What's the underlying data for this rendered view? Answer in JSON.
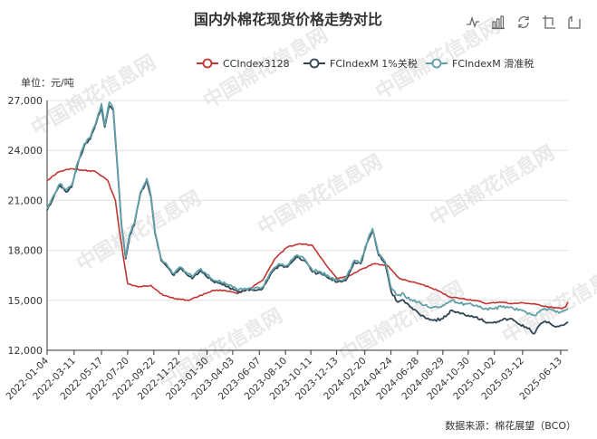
{
  "toolbar": {
    "icons": [
      "line-chart-icon",
      "bar-chart-icon",
      "restore-icon",
      "data-view-icon",
      "save-image-icon"
    ]
  },
  "watermark_text": "中国棉花信息网",
  "chart_data": {
    "type": "line",
    "title": "国内外棉花现货价格走势对比",
    "unit_label": "单位：元/吨",
    "source": "数据来源：棉花展望（BCO）",
    "ylim": [
      12000,
      27000
    ],
    "yticks": [
      12000,
      15000,
      18000,
      21000,
      24000,
      27000
    ],
    "ytick_labels": [
      "12,000",
      "15,000",
      "18,000",
      "21,000",
      "24,000",
      "27,000"
    ],
    "xlim": [
      "2022-01-04",
      "2025-07-01"
    ],
    "xtick_labels": [
      "2022-01-04",
      "2022-03-11",
      "2022-05-17",
      "2022-07-20",
      "2022-09-22",
      "2022-11-22",
      "2023-01-30",
      "2023-04-03",
      "2023-06-07",
      "2023-08-10",
      "2023-10-11",
      "2023-12-13",
      "2024-02-20",
      "2024-04-24",
      "2024-06-28",
      "2024-08-29",
      "2024-10-30",
      "2025-01-02",
      "2025-03-12",
      "2025-06-13"
    ],
    "grid": true,
    "legend_position": "top-right",
    "series": [
      {
        "name": "CCIndex3128",
        "color": "#c23531",
        "points": [
          [
            "2022-01-04",
            22200
          ],
          [
            "2022-02-01",
            22700
          ],
          [
            "2022-03-01",
            22900
          ],
          [
            "2022-04-01",
            22800
          ],
          [
            "2022-05-01",
            22750
          ],
          [
            "2022-06-01",
            22200
          ],
          [
            "2022-06-20",
            21000
          ],
          [
            "2022-07-01",
            19000
          ],
          [
            "2022-07-10",
            17500
          ],
          [
            "2022-07-20",
            16000
          ],
          [
            "2022-08-15",
            15800
          ],
          [
            "2022-09-15",
            15900
          ],
          [
            "2022-10-15",
            15300
          ],
          [
            "2022-11-15",
            15100
          ],
          [
            "2022-12-15",
            15000
          ],
          [
            "2023-01-15",
            15300
          ],
          [
            "2023-02-15",
            15600
          ],
          [
            "2023-03-15",
            15600
          ],
          [
            "2023-04-15",
            15400
          ],
          [
            "2023-05-15",
            15700
          ],
          [
            "2023-06-15",
            16200
          ],
          [
            "2023-07-15",
            17500
          ],
          [
            "2023-08-15",
            18200
          ],
          [
            "2023-09-15",
            18400
          ],
          [
            "2023-10-15",
            18300
          ],
          [
            "2023-11-15",
            17200
          ],
          [
            "2023-12-15",
            16300
          ],
          [
            "2024-01-15",
            16500
          ],
          [
            "2024-02-15",
            16900
          ],
          [
            "2024-03-15",
            17200
          ],
          [
            "2024-04-15",
            17100
          ],
          [
            "2024-05-15",
            16300
          ],
          [
            "2024-06-15",
            16100
          ],
          [
            "2024-07-15",
            15900
          ],
          [
            "2024-08-15",
            15600
          ],
          [
            "2024-09-15",
            15200
          ],
          [
            "2024-10-15",
            15100
          ],
          [
            "2024-11-15",
            15000
          ],
          [
            "2024-12-15",
            14800
          ],
          [
            "2025-01-15",
            14900
          ],
          [
            "2025-02-15",
            14800
          ],
          [
            "2025-03-15",
            14850
          ],
          [
            "2025-04-15",
            14750
          ],
          [
            "2025-05-15",
            14600
          ],
          [
            "2025-06-15",
            14500
          ],
          [
            "2025-06-25",
            14600
          ],
          [
            "2025-07-01",
            14900
          ]
        ]
      },
      {
        "name": "FCIndexM 1%关税",
        "color": "#2f4554",
        "points": [
          [
            "2022-01-04",
            20400
          ],
          [
            "2022-01-20",
            21200
          ],
          [
            "2022-02-05",
            21900
          ],
          [
            "2022-02-20",
            21500
          ],
          [
            "2022-03-05",
            21800
          ],
          [
            "2022-03-20",
            23200
          ],
          [
            "2022-04-05",
            24300
          ],
          [
            "2022-04-20",
            24700
          ],
          [
            "2022-05-05",
            25700
          ],
          [
            "2022-05-17",
            26600
          ],
          [
            "2022-05-25",
            25400
          ],
          [
            "2022-06-05",
            26700
          ],
          [
            "2022-06-15",
            26400
          ],
          [
            "2022-06-25",
            23000
          ],
          [
            "2022-07-05",
            19500
          ],
          [
            "2022-07-15",
            17500
          ],
          [
            "2022-07-25",
            18900
          ],
          [
            "2022-08-05",
            19500
          ],
          [
            "2022-08-20",
            21400
          ],
          [
            "2022-09-05",
            22200
          ],
          [
            "2022-09-15",
            21200
          ],
          [
            "2022-09-25",
            19000
          ],
          [
            "2022-10-10",
            17400
          ],
          [
            "2022-10-25",
            17000
          ],
          [
            "2022-11-10",
            16500
          ],
          [
            "2022-11-25",
            16900
          ],
          [
            "2022-12-10",
            16600
          ],
          [
            "2022-12-25",
            16300
          ],
          [
            "2023-01-15",
            16800
          ],
          [
            "2023-02-10",
            16200
          ],
          [
            "2023-03-05",
            16000
          ],
          [
            "2023-03-25",
            15800
          ],
          [
            "2023-04-15",
            15500
          ],
          [
            "2023-05-05",
            15600
          ],
          [
            "2023-05-25",
            15600
          ],
          [
            "2023-06-15",
            15700
          ],
          [
            "2023-07-05",
            16600
          ],
          [
            "2023-07-25",
            17100
          ],
          [
            "2023-08-15",
            17000
          ],
          [
            "2023-09-05",
            17600
          ],
          [
            "2023-09-25",
            17400
          ],
          [
            "2023-10-15",
            16700
          ],
          [
            "2023-11-05",
            16600
          ],
          [
            "2023-11-25",
            16300
          ],
          [
            "2023-12-15",
            16100
          ],
          [
            "2024-01-05",
            16200
          ],
          [
            "2024-01-25",
            17300
          ],
          [
            "2024-02-10",
            17200
          ],
          [
            "2024-02-28",
            18600
          ],
          [
            "2024-03-10",
            19200
          ],
          [
            "2024-03-25",
            17700
          ],
          [
            "2024-04-10",
            17200
          ],
          [
            "2024-04-25",
            15500
          ],
          [
            "2024-05-10",
            14900
          ],
          [
            "2024-05-25",
            15000
          ],
          [
            "2024-06-10",
            14600
          ],
          [
            "2024-06-28",
            14300
          ],
          [
            "2024-07-15",
            14000
          ],
          [
            "2024-08-05",
            13800
          ],
          [
            "2024-08-29",
            13900
          ],
          [
            "2024-09-20",
            14400
          ],
          [
            "2024-10-10",
            14200
          ],
          [
            "2024-10-30",
            14100
          ],
          [
            "2024-11-20",
            14000
          ],
          [
            "2024-12-10",
            13700
          ],
          [
            "2025-01-02",
            13700
          ],
          [
            "2025-01-20",
            13800
          ],
          [
            "2025-02-10",
            13900
          ],
          [
            "2025-03-01",
            13600
          ],
          [
            "2025-03-20",
            13400
          ],
          [
            "2025-04-10",
            13000
          ],
          [
            "2025-04-25",
            13600
          ],
          [
            "2025-05-15",
            13700
          ],
          [
            "2025-06-01",
            13400
          ],
          [
            "2025-06-13",
            13500
          ],
          [
            "2025-06-25",
            13600
          ],
          [
            "2025-07-01",
            13700
          ]
        ]
      },
      {
        "name": "FCIndexM 滑准税",
        "color": "#61a0a8",
        "points": [
          [
            "2022-01-04",
            20500
          ],
          [
            "2022-01-20",
            21300
          ],
          [
            "2022-02-05",
            22000
          ],
          [
            "2022-02-20",
            21600
          ],
          [
            "2022-03-05",
            21900
          ],
          [
            "2022-03-20",
            23300
          ],
          [
            "2022-04-05",
            24400
          ],
          [
            "2022-04-20",
            24800
          ],
          [
            "2022-05-05",
            25800
          ],
          [
            "2022-05-17",
            26800
          ],
          [
            "2022-05-25",
            25500
          ],
          [
            "2022-06-05",
            26900
          ],
          [
            "2022-06-15",
            26500
          ],
          [
            "2022-06-25",
            23100
          ],
          [
            "2022-07-05",
            19600
          ],
          [
            "2022-07-15",
            17600
          ],
          [
            "2022-07-25",
            19000
          ],
          [
            "2022-08-05",
            19600
          ],
          [
            "2022-08-20",
            21500
          ],
          [
            "2022-09-05",
            22300
          ],
          [
            "2022-09-15",
            21300
          ],
          [
            "2022-09-25",
            19100
          ],
          [
            "2022-10-10",
            17500
          ],
          [
            "2022-10-25",
            17100
          ],
          [
            "2022-11-10",
            16600
          ],
          [
            "2022-11-25",
            17000
          ],
          [
            "2022-12-10",
            16700
          ],
          [
            "2022-12-25",
            16400
          ],
          [
            "2023-01-15",
            16900
          ],
          [
            "2023-02-10",
            16300
          ],
          [
            "2023-03-05",
            16100
          ],
          [
            "2023-03-25",
            15900
          ],
          [
            "2023-04-15",
            15600
          ],
          [
            "2023-05-05",
            15700
          ],
          [
            "2023-05-25",
            15700
          ],
          [
            "2023-06-15",
            15800
          ],
          [
            "2023-07-05",
            16700
          ],
          [
            "2023-07-25",
            17200
          ],
          [
            "2023-08-15",
            17100
          ],
          [
            "2023-09-05",
            17700
          ],
          [
            "2023-09-25",
            17500
          ],
          [
            "2023-10-15",
            16800
          ],
          [
            "2023-11-05",
            16700
          ],
          [
            "2023-11-25",
            16400
          ],
          [
            "2023-12-15",
            16200
          ],
          [
            "2024-01-05",
            16300
          ],
          [
            "2024-01-25",
            17400
          ],
          [
            "2024-02-10",
            17300
          ],
          [
            "2024-02-28",
            18700
          ],
          [
            "2024-03-10",
            19300
          ],
          [
            "2024-03-25",
            17800
          ],
          [
            "2024-04-10",
            17300
          ],
          [
            "2024-04-25",
            15700
          ],
          [
            "2024-05-10",
            15300
          ],
          [
            "2024-05-25",
            15400
          ],
          [
            "2024-06-10",
            15000
          ],
          [
            "2024-06-28",
            14900
          ],
          [
            "2024-07-15",
            14700
          ],
          [
            "2024-08-05",
            14600
          ],
          [
            "2024-08-29",
            14700
          ],
          [
            "2024-09-20",
            15000
          ],
          [
            "2024-10-10",
            14800
          ],
          [
            "2024-10-30",
            14800
          ],
          [
            "2024-11-20",
            14700
          ],
          [
            "2024-12-10",
            14500
          ],
          [
            "2025-01-02",
            14500
          ],
          [
            "2025-01-20",
            14600
          ],
          [
            "2025-02-10",
            14600
          ],
          [
            "2025-03-01",
            14400
          ],
          [
            "2025-03-20",
            14300
          ],
          [
            "2025-04-10",
            14100
          ],
          [
            "2025-04-25",
            14400
          ],
          [
            "2025-05-15",
            14500
          ],
          [
            "2025-06-01",
            14300
          ],
          [
            "2025-06-13",
            14300
          ],
          [
            "2025-06-25",
            14400
          ],
          [
            "2025-07-01",
            14500
          ]
        ]
      }
    ]
  }
}
